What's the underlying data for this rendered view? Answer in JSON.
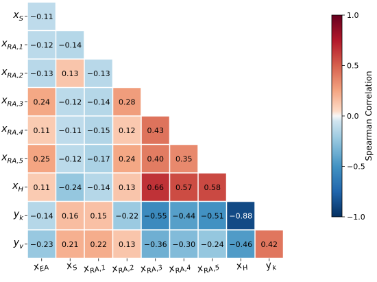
{
  "chart_data": {
    "type": "heatmap",
    "variant": "lower-triangle-correlation",
    "row_labels": [
      {
        "base": "x",
        "sub": "S"
      },
      {
        "base": "x",
        "sub": "RA,1"
      },
      {
        "base": "x",
        "sub": "RA,2"
      },
      {
        "base": "x",
        "sub": "RA,3"
      },
      {
        "base": "x",
        "sub": "RA,4"
      },
      {
        "base": "x",
        "sub": "RA,5"
      },
      {
        "base": "x",
        "sub": "H"
      },
      {
        "base": "y",
        "sub": "k"
      },
      {
        "base": "y",
        "sub": "v"
      }
    ],
    "col_labels": [
      {
        "base": "x",
        "sub": "EA"
      },
      {
        "base": "x",
        "sub": "S"
      },
      {
        "base": "x",
        "sub": "RA,1"
      },
      {
        "base": "x",
        "sub": "RA,2"
      },
      {
        "base": "x",
        "sub": "RA,3"
      },
      {
        "base": "x",
        "sub": "RA,4"
      },
      {
        "base": "x",
        "sub": "RA,5"
      },
      {
        "base": "x",
        "sub": "H"
      },
      {
        "base": "y",
        "sub": "k"
      }
    ],
    "values": [
      [
        -0.11
      ],
      [
        -0.12,
        -0.14
      ],
      [
        -0.13,
        0.13,
        -0.13
      ],
      [
        0.24,
        -0.12,
        -0.14,
        0.28
      ],
      [
        0.11,
        -0.11,
        -0.15,
        0.12,
        0.43
      ],
      [
        0.25,
        -0.12,
        -0.17,
        0.24,
        0.4,
        0.35
      ],
      [
        0.11,
        -0.24,
        -0.14,
        0.13,
        0.66,
        0.57,
        0.58
      ],
      [
        -0.14,
        0.16,
        0.15,
        -0.22,
        -0.55,
        -0.44,
        -0.51,
        -0.88
      ],
      [
        -0.23,
        0.21,
        0.22,
        0.13,
        -0.36,
        -0.3,
        -0.24,
        -0.46,
        0.42
      ]
    ],
    "value_labels": [
      [
        "−0.11"
      ],
      [
        "−0.12",
        "−0.14"
      ],
      [
        "−0.13",
        "0.13",
        "−0.13"
      ],
      [
        "0.24",
        "−0.12",
        "−0.14",
        "0.28"
      ],
      [
        "0.11",
        "−0.11",
        "−0.15",
        "0.12",
        "0.43"
      ],
      [
        "0.25",
        "−0.12",
        "−0.17",
        "0.24",
        "0.40",
        "0.35"
      ],
      [
        "0.11",
        "−0.24",
        "−0.14",
        "0.13",
        "0.66",
        "0.57",
        "0.58"
      ],
      [
        "−0.14",
        "0.16",
        "0.15",
        "−0.22",
        "−0.55",
        "−0.44",
        "−0.51",
        "−0.88"
      ],
      [
        "−0.23",
        "0.21",
        "0.22",
        "0.13",
        "−0.36",
        "−0.30",
        "−0.24",
        "−0.46",
        "0.42"
      ]
    ],
    "colormap": "RdBu_r",
    "vmin": -1.0,
    "vmax": 1.0,
    "colorbar": {
      "label": "Spearman Correlation",
      "ticks": [
        1.0,
        0.5,
        0.0,
        -0.5,
        -1.0
      ],
      "tick_labels": [
        "1.0",
        "0.5",
        "0.0",
        "−0.5",
        "−1.0"
      ],
      "placement": "right"
    },
    "colors": {
      "cell_border": "#ffffff",
      "text_dark": "#000000",
      "text_light": "#ffffff"
    }
  }
}
